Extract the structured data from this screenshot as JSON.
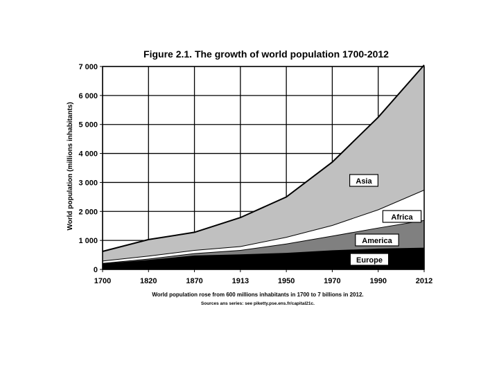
{
  "chart_data": {
    "type": "area",
    "stacked": true,
    "title": "Figure 2.1. The growth of world population 1700-2012",
    "xlabel": "",
    "ylabel": "World population (millions inhabitants)",
    "x": [
      1700,
      1820,
      1870,
      1913,
      1950,
      1970,
      1990,
      2012
    ],
    "x_tick_labels": [
      "1700",
      "1820",
      "1870",
      "1913",
      "1950",
      "1970",
      "1990",
      "2012"
    ],
    "x_scale": "categorical-equal-spacing",
    "ylim": [
      0,
      7000
    ],
    "y_ticks": [
      0,
      1000,
      2000,
      3000,
      4000,
      5000,
      6000,
      7000
    ],
    "y_tick_labels": [
      "0",
      "1 000",
      "2 000",
      "3 000",
      "4 000",
      "5 000",
      "6 000",
      "7 000"
    ],
    "grid": "vertical-and-horizontal",
    "series": [
      {
        "name": "Europe",
        "values": [
          200,
          330,
          480,
          520,
          570,
          660,
          720,
          750
        ],
        "color": "#000000"
      },
      {
        "name": "America",
        "values": [
          20,
          40,
          80,
          150,
          320,
          500,
          720,
          950
        ],
        "color": "#808080"
      },
      {
        "name": "Africa",
        "values": [
          80,
          100,
          110,
          130,
          230,
          370,
          630,
          1050
        ],
        "color": "#ffffff"
      },
      {
        "name": "Asia",
        "values": [
          320,
          560,
          610,
          990,
          1380,
          2170,
          3180,
          4300
        ],
        "color": "#c0c0c0"
      }
    ],
    "caption": "World population rose from 600 millions inhabitants in 1700 to 7 billions in 2012.",
    "source": "Sources ans series: see piketty.pse.ens.fr/capital21c."
  }
}
